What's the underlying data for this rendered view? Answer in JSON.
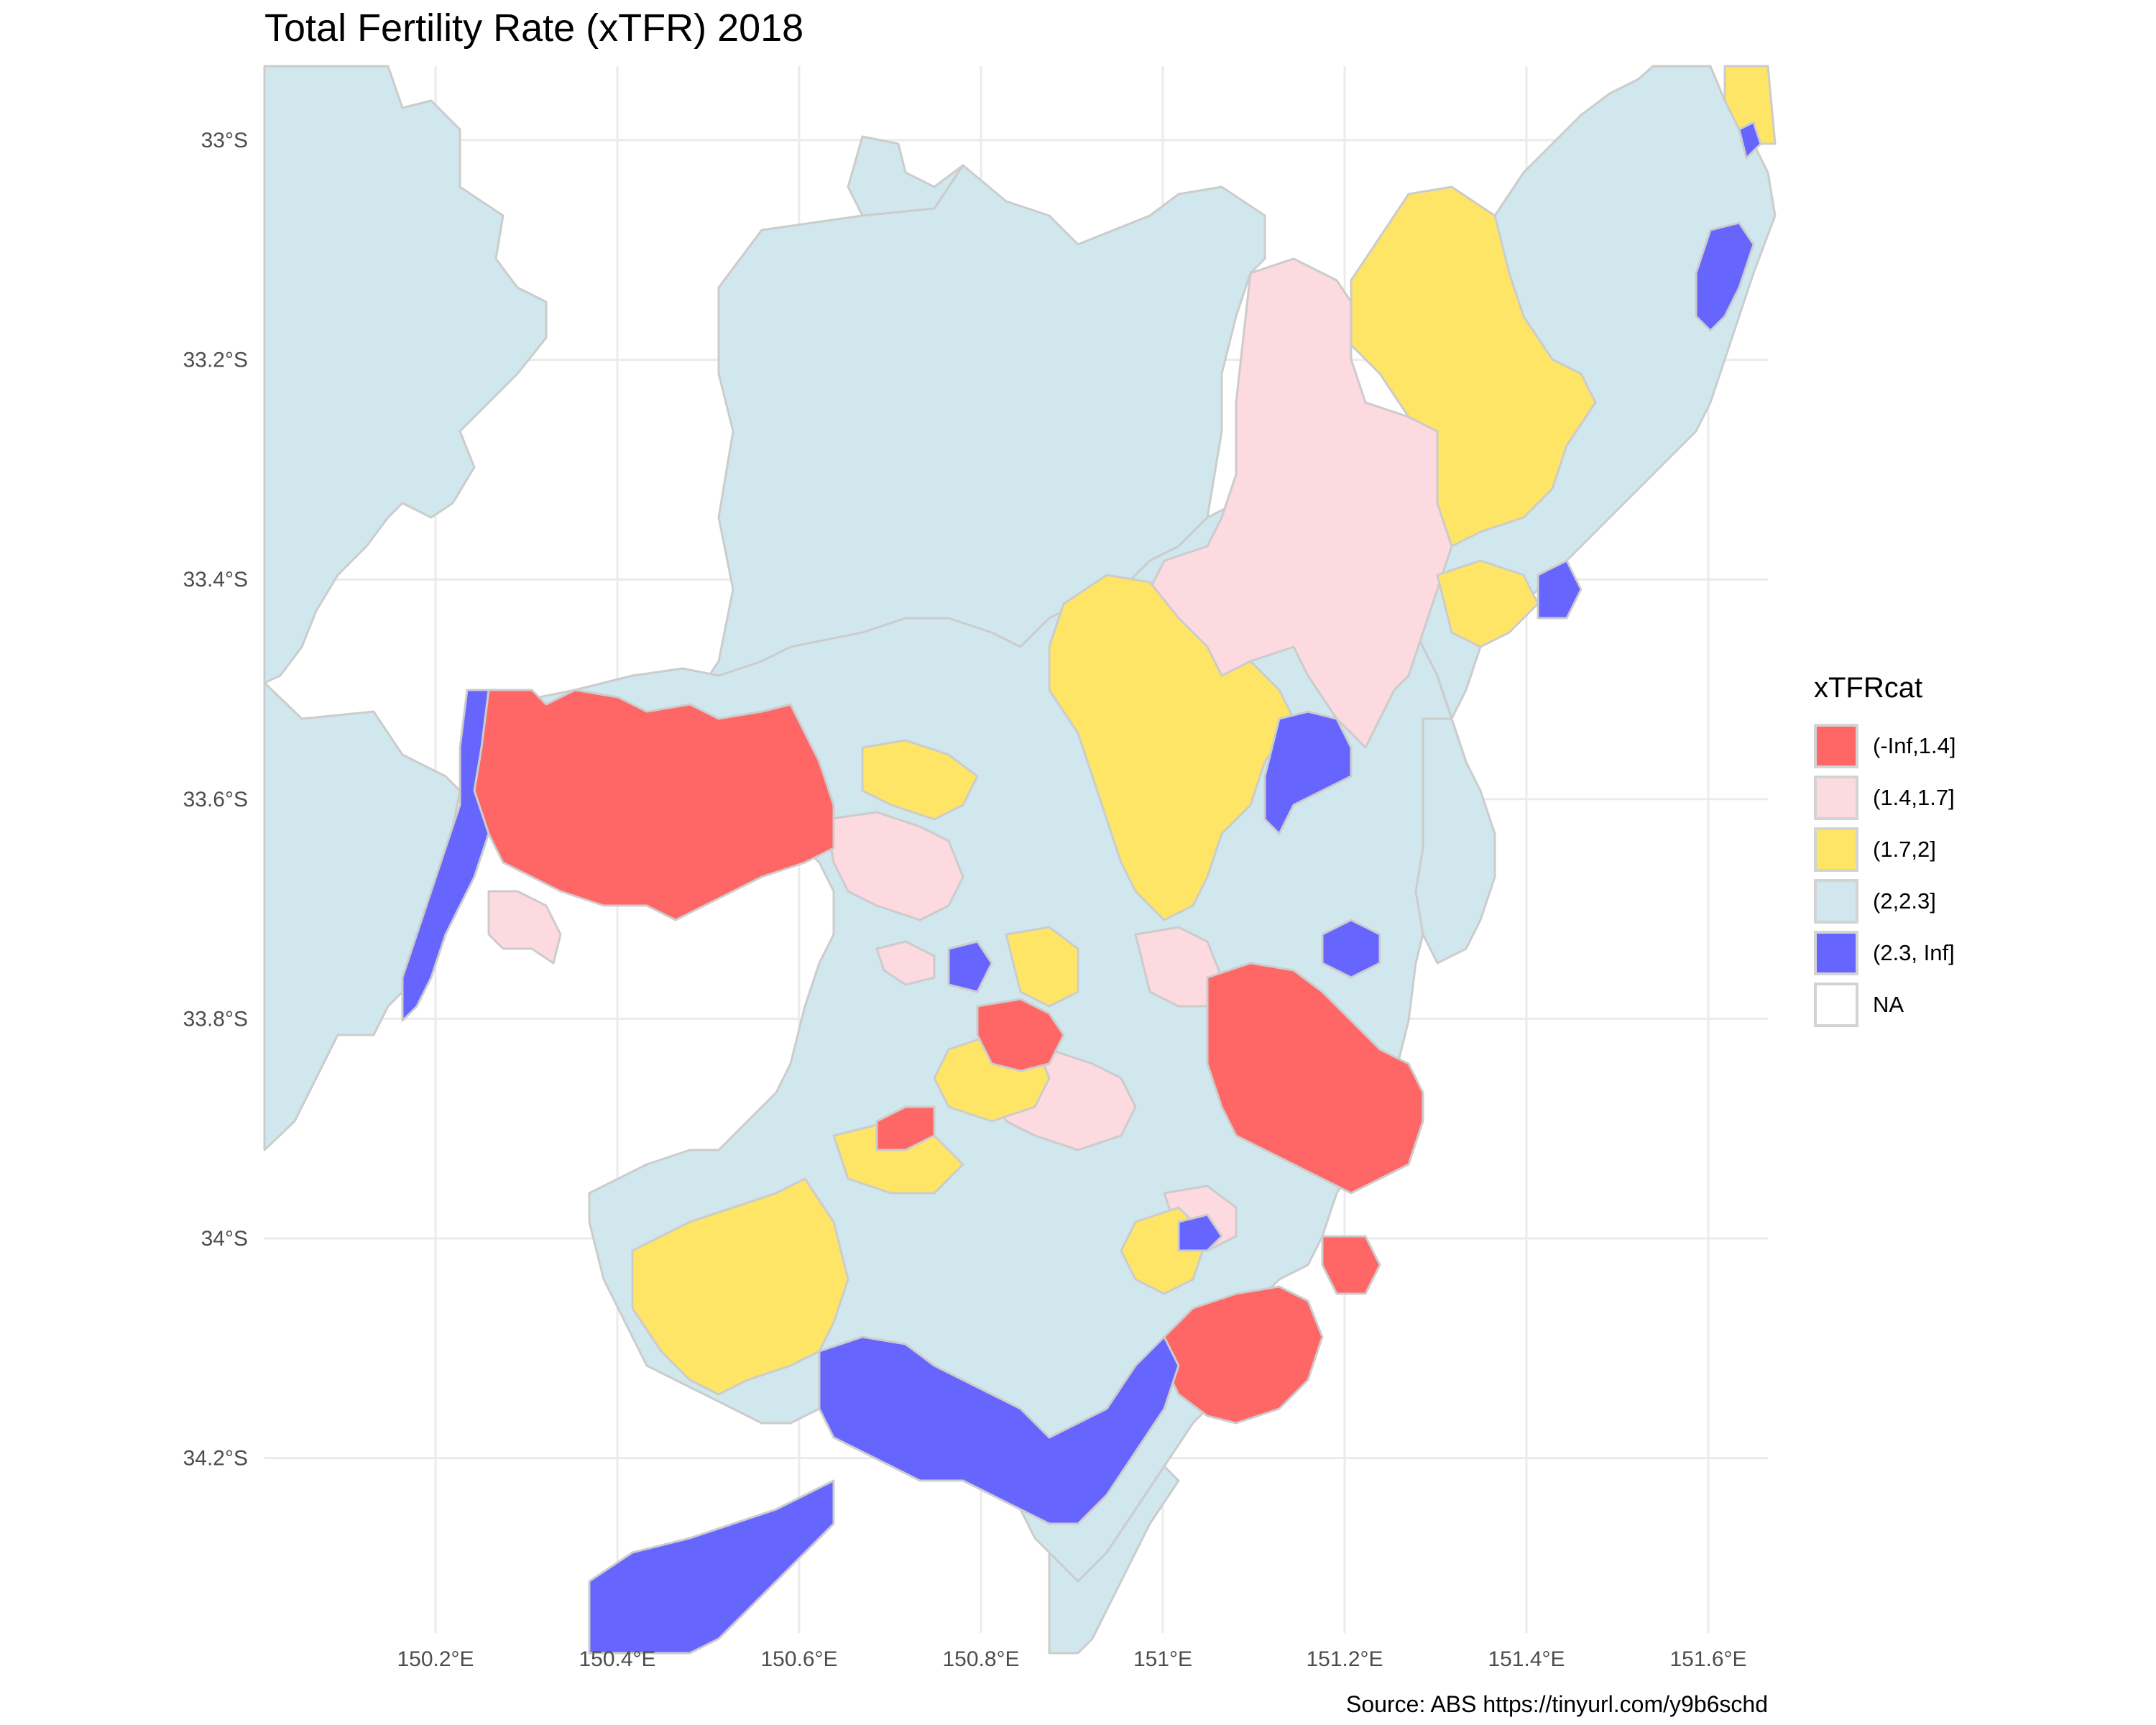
{
  "title": "Total Fertility Rate (xTFR) 2018",
  "caption": "Source: ABS https://tinyurl.com/y9b6schd",
  "legend": {
    "title": "xTFRcat",
    "items": [
      {
        "label": "(-Inf,1.4]",
        "color": "#ff6666"
      },
      {
        "label": "(1.4,1.7]",
        "color": "#fdd9e0"
      },
      {
        "label": "(1.7,2]",
        "color": "#ffe566"
      },
      {
        "label": "(2,2.3]",
        "color": "#cfe7ed"
      },
      {
        "label": "(2.3, Inf]",
        "color": "#6666ff"
      },
      {
        "label": "NA",
        "color": "#ffffff"
      }
    ]
  },
  "axes": {
    "x_ticks": [
      {
        "value": 150.2,
        "label": "150.2°E"
      },
      {
        "value": 150.4,
        "label": "150.4°E"
      },
      {
        "value": 150.6,
        "label": "150.6°E"
      },
      {
        "value": 150.8,
        "label": "150.8°E"
      },
      {
        "value": 151.0,
        "label": "151°E"
      },
      {
        "value": 151.2,
        "label": "151.2°E"
      },
      {
        "value": 151.4,
        "label": "151.4°E"
      },
      {
        "value": 151.6,
        "label": "151.6°E"
      }
    ],
    "y_ticks": [
      {
        "value": -33.0,
        "label": "33°S"
      },
      {
        "value": -33.2,
        "label": "33.2°S"
      },
      {
        "value": -33.4,
        "label": "33.4°S"
      },
      {
        "value": -33.6,
        "label": "33.6°S"
      },
      {
        "value": -33.8,
        "label": "33.8°S"
      },
      {
        "value": -34.0,
        "label": "34°S"
      },
      {
        "value": -34.2,
        "label": "34.2°S"
      }
    ]
  }
}
